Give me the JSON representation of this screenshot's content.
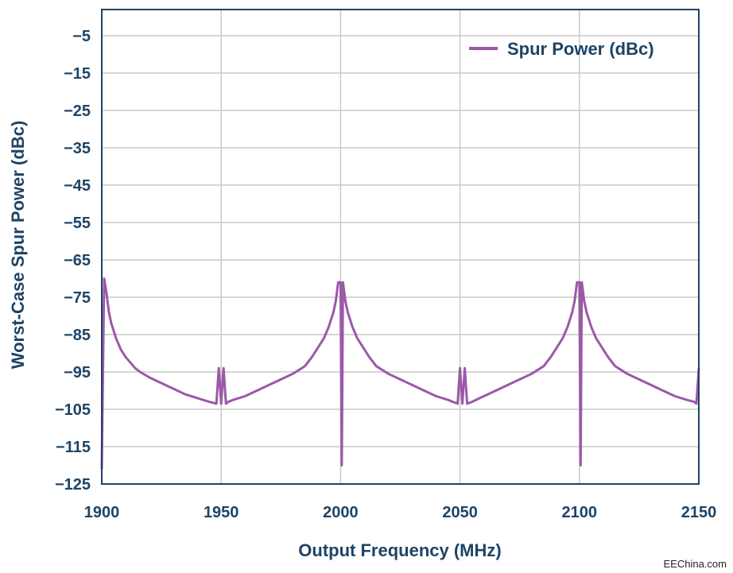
{
  "chart_data": {
    "type": "line",
    "xlabel": "Output Frequency (MHz)",
    "ylabel": "Worst-Case Spur Power (dBc)",
    "xlim": [
      1900,
      2150
    ],
    "ylim": [
      -125,
      2
    ],
    "x_ticks": [
      1900,
      1950,
      2000,
      2050,
      2100,
      2150
    ],
    "x_tick_labels": [
      "1900",
      "1950",
      "2000",
      "2050",
      "2100",
      "2150"
    ],
    "y_ticks": [
      -5,
      -15,
      -25,
      -35,
      -45,
      -55,
      -65,
      -75,
      -85,
      -95,
      -105,
      -115,
      -125
    ],
    "y_tick_labels": [
      "−5",
      "−15",
      "−25",
      "−35",
      "−45",
      "−55",
      "−65",
      "−75",
      "−85",
      "−95",
      "−105",
      "−115",
      "−125"
    ],
    "grid": true,
    "legend_position": "top-right",
    "series": [
      {
        "name": "Spur Power (dBc)",
        "color": "#9b59a8",
        "x": [
          1900,
          1901,
          1902,
          1903,
          1904,
          1906,
          1908,
          1910,
          1912,
          1914,
          1916,
          1920,
          1925,
          1930,
          1935,
          1940,
          1945,
          1948,
          1949,
          1950,
          1951,
          1952,
          1953,
          1955,
          1960,
          1965,
          1970,
          1975,
          1980,
          1985,
          1988,
          1991,
          1993,
          1995,
          1997,
          1998,
          1999,
          2000,
          2000.5,
          2001,
          2002,
          2003,
          2005,
          2007,
          2009,
          2012,
          2015,
          2020,
          2025,
          2030,
          2035,
          2040,
          2045,
          2047,
          2049,
          2050,
          2051,
          2052,
          2053,
          2055,
          2060,
          2065,
          2070,
          2075,
          2080,
          2085,
          2088,
          2091,
          2093,
          2095,
          2097,
          2098,
          2099,
          2100,
          2100.5,
          2101,
          2102,
          2103,
          2105,
          2107,
          2109,
          2112,
          2115,
          2120,
          2125,
          2130,
          2135,
          2140,
          2145,
          2148,
          2149,
          2150
        ],
        "y": [
          -121,
          -70,
          -74,
          -79,
          -82,
          -86,
          -89,
          -91,
          -92.5,
          -94,
          -95,
          -96.5,
          -98,
          -99.5,
          -101,
          -102,
          -103,
          -103.5,
          -94,
          -103.5,
          -94,
          -103.5,
          -103,
          -102.5,
          -101.5,
          -100,
          -98.5,
          -97,
          -95.5,
          -93.5,
          -91,
          -88,
          -86,
          -83,
          -79,
          -76,
          -71,
          -71,
          -120,
          -71,
          -76,
          -79,
          -83,
          -86,
          -88,
          -91,
          -93.5,
          -95.5,
          -97,
          -98.5,
          -100,
          -101.5,
          -102.5,
          -103,
          -103.5,
          -94,
          -103.5,
          -94,
          -103.5,
          -103,
          -101.5,
          -100,
          -98.5,
          -97,
          -95.5,
          -93.5,
          -91,
          -88,
          -86,
          -83,
          -79,
          -76,
          -71,
          -71,
          -120,
          -71,
          -76,
          -79,
          -83,
          -86,
          -88,
          -91,
          -93.5,
          -95.5,
          -97,
          -98.5,
          -100,
          -101.5,
          -102.5,
          -103,
          -103.5,
          -94
        ]
      }
    ]
  },
  "watermark": "EEChina.com"
}
